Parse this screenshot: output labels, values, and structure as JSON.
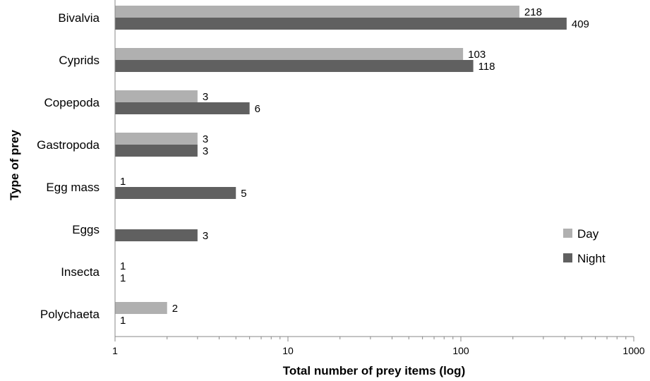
{
  "chart_data": {
    "type": "bar",
    "orientation": "horizontal",
    "xscale": "log",
    "xlim": [
      1,
      1000
    ],
    "xticks": [
      "1",
      "10",
      "100",
      "1000"
    ],
    "xlabel": "Total number of prey items (log)",
    "ylabel": "Type of prey",
    "categories": [
      "Bivalvia",
      "Cyprids",
      "Copepoda",
      "Gastropoda",
      "Egg mass",
      "Eggs",
      "Insecta",
      "Polychaeta"
    ],
    "series": [
      {
        "name": "Day",
        "color": "#b0b0b0",
        "values": [
          218,
          103,
          3,
          3,
          1,
          null,
          1,
          2
        ],
        "labels": [
          "218",
          "103",
          "3",
          "3",
          "1",
          "",
          "1",
          "2"
        ]
      },
      {
        "name": "Night",
        "color": "#606060",
        "values": [
          409,
          118,
          6,
          3,
          5,
          3,
          1,
          1
        ],
        "labels": [
          "409",
          "118",
          "6",
          "3",
          "5",
          "3",
          "1",
          "1"
        ]
      }
    ],
    "legend_position": "right",
    "grid": false
  }
}
